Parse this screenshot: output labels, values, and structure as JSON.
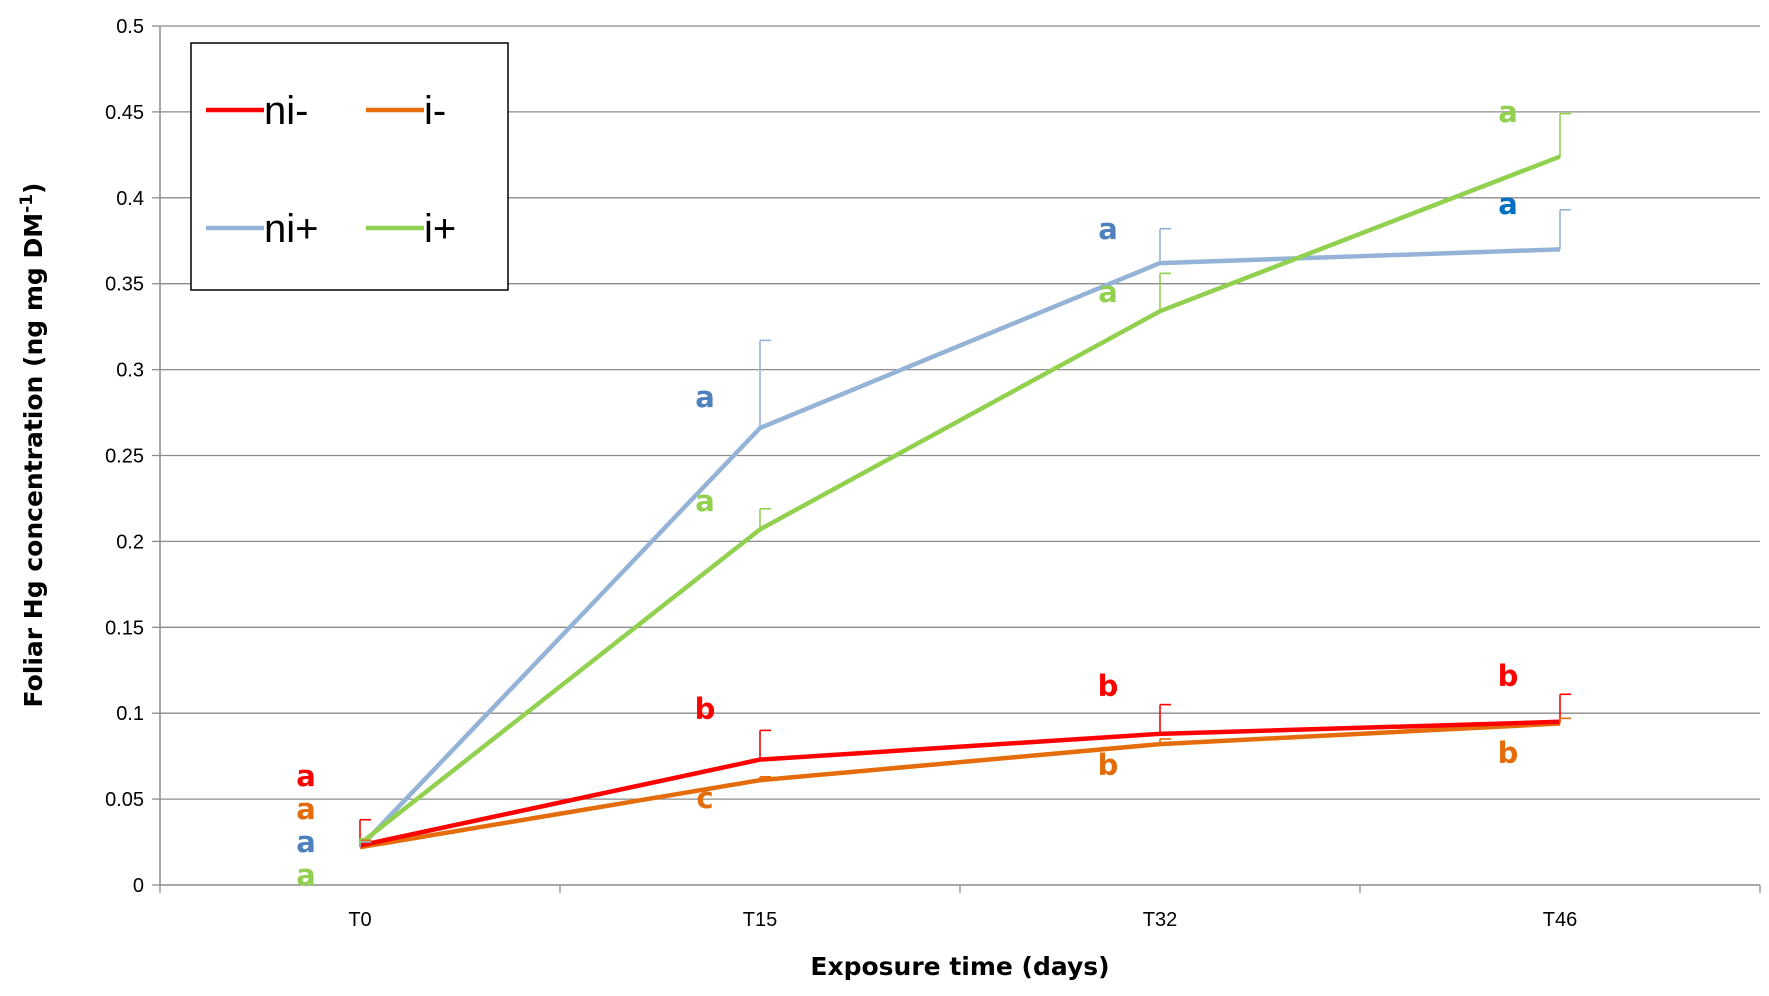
{
  "chart_data": {
    "type": "line",
    "xlabel": "Exposure time (days)",
    "ylabel": "Foliar Hg concentration (ng mg DM",
    "ylabel_superscript": "-1",
    "ylabel_suffix": ")",
    "ylim": [
      0,
      0.5
    ],
    "yticks": [
      0,
      0.05,
      0.1,
      0.15,
      0.2,
      0.25,
      0.3,
      0.35,
      0.4,
      0.45,
      0.5
    ],
    "ytick_labels": [
      "0",
      "0.05",
      "0.1",
      "0.15",
      "0.2",
      "0.25",
      "0.3",
      "0.35",
      "0.4",
      "0.45",
      "0.5"
    ],
    "categories": [
      "T0",
      "T15",
      "T32",
      "T46"
    ],
    "grid": true,
    "legend_position": "top-left",
    "series": [
      {
        "name": "ni-",
        "color": "#ff0000",
        "values": [
          0.023,
          0.073,
          0.088,
          0.095
        ],
        "error": [
          0.015,
          0.017,
          0.017,
          0.016
        ],
        "letters": [
          "a",
          "b",
          "b",
          "b"
        ],
        "letter_color": "#ff0000"
      },
      {
        "name": "i-",
        "color": "#e46c0a",
        "values": [
          0.022,
          0.061,
          0.082,
          0.094
        ],
        "error": [
          0.004,
          0.002,
          0.003,
          0.003
        ],
        "letters": [
          "a",
          "c",
          "b",
          "b"
        ],
        "letter_color": "#e46c0a"
      },
      {
        "name": "ni+",
        "color": "#95b3d7",
        "values": [
          0.022,
          0.266,
          0.362,
          0.37
        ],
        "error": [
          0.003,
          0.051,
          0.02,
          0.023
        ],
        "letters": [
          "a",
          "a",
          "a",
          "a"
        ],
        "letter_colors": [
          "#4f81bd",
          "#4f81bd",
          "#4f81bd",
          "#0070c0"
        ]
      },
      {
        "name": "i+",
        "color": "#92d050",
        "values": [
          0.024,
          0.207,
          0.334,
          0.424
        ],
        "error": [
          0.003,
          0.012,
          0.022,
          0.025
        ],
        "letters": [
          "a",
          "a",
          "a",
          "a"
        ],
        "letter_color": "#92d050"
      }
    ]
  }
}
